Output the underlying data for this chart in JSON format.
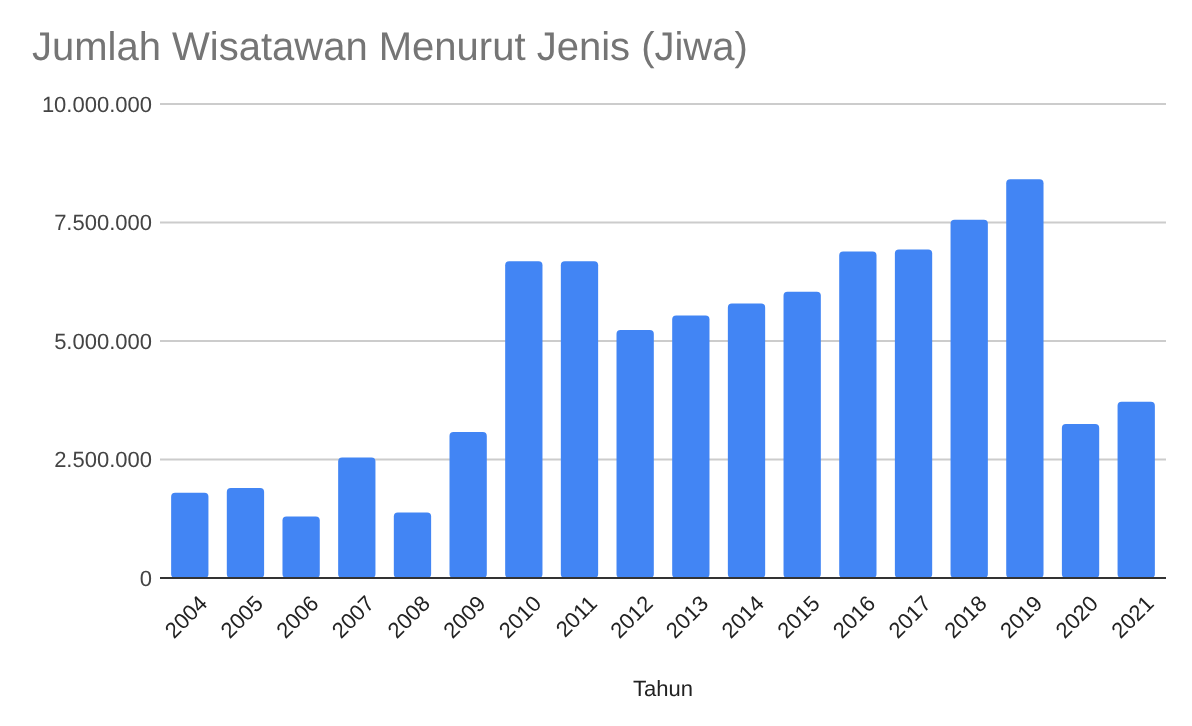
{
  "chart_data": {
    "type": "bar",
    "title": "Jumlah Wisatawan Menurut Jenis (Jiwa)",
    "xlabel": "Tahun",
    "categories": [
      "2004",
      "2005",
      "2006",
      "2007",
      "2008",
      "2009",
      "2010",
      "2011",
      "2012",
      "2013",
      "2014",
      "2015",
      "2016",
      "2017",
      "2018",
      "2019",
      "2020",
      "2021"
    ],
    "series": [
      {
        "color": "#4285f4",
        "values": [
          1800000,
          1900000,
          1300000,
          2540000,
          1380000,
          3080000,
          6680000,
          6680000,
          5230000,
          5540000,
          5790000,
          6040000,
          6890000,
          6930000,
          7560000,
          8410000,
          3250000,
          3720000
        ]
      }
    ],
    "ylim": [
      0,
      10000000
    ],
    "yticks": [
      {
        "value": 0,
        "label": "0"
      },
      {
        "value": 2500000,
        "label": "2.500.000"
      },
      {
        "value": 5000000,
        "label": "5.000.000"
      },
      {
        "value": 7500000,
        "label": "7.500.000"
      },
      {
        "value": 10000000,
        "label": "10.000.000"
      }
    ],
    "grid": "y"
  }
}
